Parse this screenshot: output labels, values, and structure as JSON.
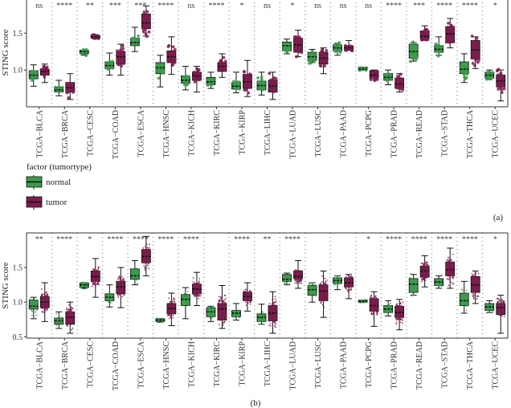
{
  "legend": {
    "title": "factor (tumortype)",
    "items": [
      "normal",
      "tumor"
    ]
  },
  "colors": {
    "normal": "#3c9b4c",
    "tumor": "#7b1d4e",
    "divider": "#7f7fd0"
  },
  "chart_data": [
    {
      "type": "box",
      "panel_label": "(a)",
      "ylabel": "STING score",
      "ylim": [
        0.5,
        1.95
      ],
      "yticks": [
        "1.0",
        "1.5"
      ],
      "categories": [
        "TCGA−BLCA",
        "TCGA−BRCA",
        "TCGA−CESC",
        "TCGA−COAD",
        "TCGA−ESCA",
        "TCGA−HNSC",
        "TCGA−KICH",
        "TCGA−KIRC",
        "TCGA−KIRP",
        "TCGA−LIHC",
        "TCGA−LUAD",
        "TCGA−LUSC",
        "TCGA−PAAD",
        "TCGA−PCPG",
        "TCGA−PRAD",
        "TCGA−READ",
        "TCGA−STAD",
        "TCGA−THCA",
        "TCGA−UCEC"
      ],
      "significance": [
        "ns",
        "****",
        "**",
        "***",
        "***",
        "****",
        "ns",
        "****",
        "*",
        "ns",
        "*",
        "ns",
        "ns",
        "ns",
        "****",
        "***",
        "****",
        "****",
        "*"
      ],
      "series": [
        {
          "name": "normal",
          "boxes": [
            [
              0.78,
              0.88,
              0.93,
              0.99,
              1.07
            ],
            [
              0.65,
              0.7,
              0.73,
              0.77,
              0.86
            ],
            [
              1.2,
              1.22,
              1.25,
              1.27,
              1.27
            ],
            [
              0.93,
              1.02,
              1.06,
              1.11,
              1.23
            ],
            [
              1.25,
              1.33,
              1.37,
              1.43,
              1.58
            ],
            [
              0.77,
              0.95,
              1.03,
              1.1,
              1.2
            ],
            [
              0.73,
              0.82,
              0.86,
              0.92,
              1.05
            ],
            [
              0.75,
              0.8,
              0.84,
              0.9,
              0.97
            ],
            [
              0.69,
              0.74,
              0.78,
              0.83,
              0.97
            ],
            [
              0.66,
              0.73,
              0.79,
              0.85,
              0.97
            ],
            [
              1.22,
              1.26,
              1.33,
              1.38,
              1.42
            ],
            [
              1.1,
              1.13,
              1.18,
              1.24,
              1.28
            ],
            [
              1.2,
              1.26,
              1.3,
              1.34,
              1.36
            ],
            [
              1.0,
              1.0,
              1.01,
              1.04,
              1.02
            ],
            [
              0.8,
              0.86,
              0.9,
              0.95,
              1.0
            ],
            [
              1.12,
              1.16,
              1.25,
              1.35,
              1.37
            ],
            [
              1.2,
              1.24,
              1.28,
              1.33,
              1.45
            ],
            [
              0.83,
              0.95,
              1.01,
              1.11,
              1.22
            ],
            [
              0.87,
              0.89,
              0.93,
              0.97,
              1.0
            ]
          ]
        },
        {
          "name": "tumor",
          "boxes": [
            [
              0.83,
              0.93,
              0.98,
              1.01,
              1.08
            ],
            [
              0.6,
              0.7,
              0.76,
              0.83,
              0.95
            ],
            [
              1.42,
              1.43,
              1.45,
              1.47,
              1.48
            ],
            [
              0.93,
              1.08,
              1.18,
              1.25,
              1.35
            ],
            [
              1.46,
              1.56,
              1.64,
              1.76,
              1.87
            ],
            [
              0.94,
              1.1,
              1.18,
              1.26,
              1.45
            ],
            [
              0.7,
              0.86,
              0.92,
              0.97,
              1.05
            ],
            [
              0.9,
              0.98,
              1.05,
              1.1,
              1.22
            ],
            [
              0.64,
              0.75,
              0.84,
              0.94,
              1.13
            ],
            [
              0.6,
              0.7,
              0.78,
              0.86,
              0.97
            ],
            [
              1.18,
              1.24,
              1.34,
              1.43,
              1.54
            ],
            [
              0.95,
              1.08,
              1.16,
              1.24,
              1.3
            ],
            [
              1.27,
              1.27,
              1.3,
              1.33,
              1.4
            ],
            [
              0.87,
              0.89,
              0.93,
              0.99,
              1.0
            ],
            [
              0.7,
              0.75,
              0.81,
              0.89,
              0.95
            ],
            [
              1.42,
              1.43,
              1.46,
              1.53,
              1.6
            ],
            [
              1.3,
              1.37,
              1.49,
              1.59,
              1.7
            ],
            [
              1.02,
              1.15,
              1.27,
              1.4,
              1.45
            ],
            [
              0.58,
              0.77,
              0.85,
              0.93,
              1.0
            ]
          ]
        }
      ]
    },
    {
      "type": "box",
      "panel_label": "(b)",
      "ylabel": "STING score",
      "ylim": [
        0.48,
        2.0
      ],
      "yticks": [
        "0.5",
        "1.0",
        "1.5"
      ],
      "categories": [
        "TCGA−BLCA",
        "TCGA−BRCA",
        "TCGA−CESC",
        "TCGA−COAD",
        "TCGA−ESCA",
        "TCGA−HNSC",
        "TCGA−KICH",
        "TCGA−KIRC",
        "TCGA−KIRP",
        "TCGA−LIHC",
        "TCGA−LUAD",
        "TCGA−LUSC",
        "TCGA−PAAD",
        "TCGA−PCPG",
        "TCGA−PRAD",
        "TCGA−READ",
        "TCGA−STAD",
        "TCGA−THCA",
        "TCGA−UCEC"
      ],
      "significance": [
        "**",
        "****",
        "*",
        "****",
        "****",
        "****",
        "****",
        "",
        "****",
        "**",
        "****",
        "",
        "",
        "*",
        "****",
        "****",
        "****",
        "****",
        "*"
      ],
      "series": [
        {
          "name": "normal",
          "boxes": [
            [
              0.76,
              0.9,
              0.94,
              1.03,
              1.07
            ],
            [
              0.62,
              0.68,
              0.73,
              0.77,
              0.86
            ],
            [
              1.2,
              1.21,
              1.25,
              1.28,
              1.28
            ],
            [
              0.93,
              1.02,
              1.07,
              1.12,
              1.25
            ],
            [
              1.25,
              1.33,
              1.38,
              1.48,
              1.6
            ],
            [
              0.71,
              0.72,
              0.74,
              0.76,
              0.76
            ],
            [
              0.76,
              0.95,
              1.04,
              1.11,
              1.21
            ],
            [
              0.72,
              0.79,
              0.86,
              0.92,
              0.94
            ],
            [
              0.74,
              0.79,
              0.84,
              0.88,
              0.98
            ],
            [
              0.68,
              0.72,
              0.78,
              0.83,
              0.97
            ],
            [
              1.25,
              1.3,
              1.33,
              1.4,
              1.42
            ],
            [
              1.0,
              1.1,
              1.18,
              1.24,
              1.28
            ],
            [
              1.18,
              1.27,
              1.31,
              1.35,
              1.38
            ],
            [
              1.0,
              1.0,
              1.01,
              1.03,
              1.03
            ],
            [
              0.8,
              0.85,
              0.9,
              0.95,
              1.02
            ],
            [
              1.1,
              1.14,
              1.26,
              1.34,
              1.4
            ],
            [
              1.2,
              1.24,
              1.29,
              1.34,
              1.38
            ],
            [
              0.84,
              0.95,
              1.02,
              1.13,
              1.3
            ],
            [
              0.85,
              0.88,
              0.93,
              0.98,
              1.02
            ]
          ]
        },
        {
          "name": "tumor",
          "boxes": [
            [
              0.72,
              0.92,
              1.0,
              1.08,
              1.28
            ],
            [
              0.55,
              0.68,
              0.78,
              0.86,
              1.0
            ],
            [
              1.07,
              1.3,
              1.37,
              1.45,
              1.63
            ],
            [
              0.92,
              1.12,
              1.22,
              1.3,
              1.5
            ],
            [
              1.38,
              1.57,
              1.66,
              1.76,
              1.95
            ],
            [
              0.66,
              0.83,
              0.91,
              0.98,
              1.13
            ],
            [
              0.95,
              1.12,
              1.19,
              1.26,
              1.43
            ],
            [
              0.62,
              0.74,
              0.9,
              0.98,
              1.24
            ],
            [
              0.87,
              1.02,
              1.08,
              1.14,
              1.28
            ],
            [
              0.55,
              0.73,
              0.84,
              0.95,
              1.15
            ],
            [
              1.2,
              1.34,
              1.37,
              1.45,
              1.6
            ],
            [
              0.78,
              1.02,
              1.16,
              1.25,
              1.45
            ],
            [
              1.05,
              1.22,
              1.28,
              1.35,
              1.4
            ],
            [
              0.65,
              0.87,
              0.95,
              1.05,
              1.15
            ],
            [
              0.6,
              0.78,
              0.85,
              0.94,
              1.04
            ],
            [
              1.22,
              1.36,
              1.45,
              1.52,
              1.67
            ],
            [
              1.2,
              1.38,
              1.47,
              1.58,
              1.78
            ],
            [
              0.98,
              1.14,
              1.25,
              1.37,
              1.45
            ],
            [
              0.55,
              0.82,
              0.92,
              0.98,
              1.1
            ]
          ]
        }
      ]
    }
  ]
}
